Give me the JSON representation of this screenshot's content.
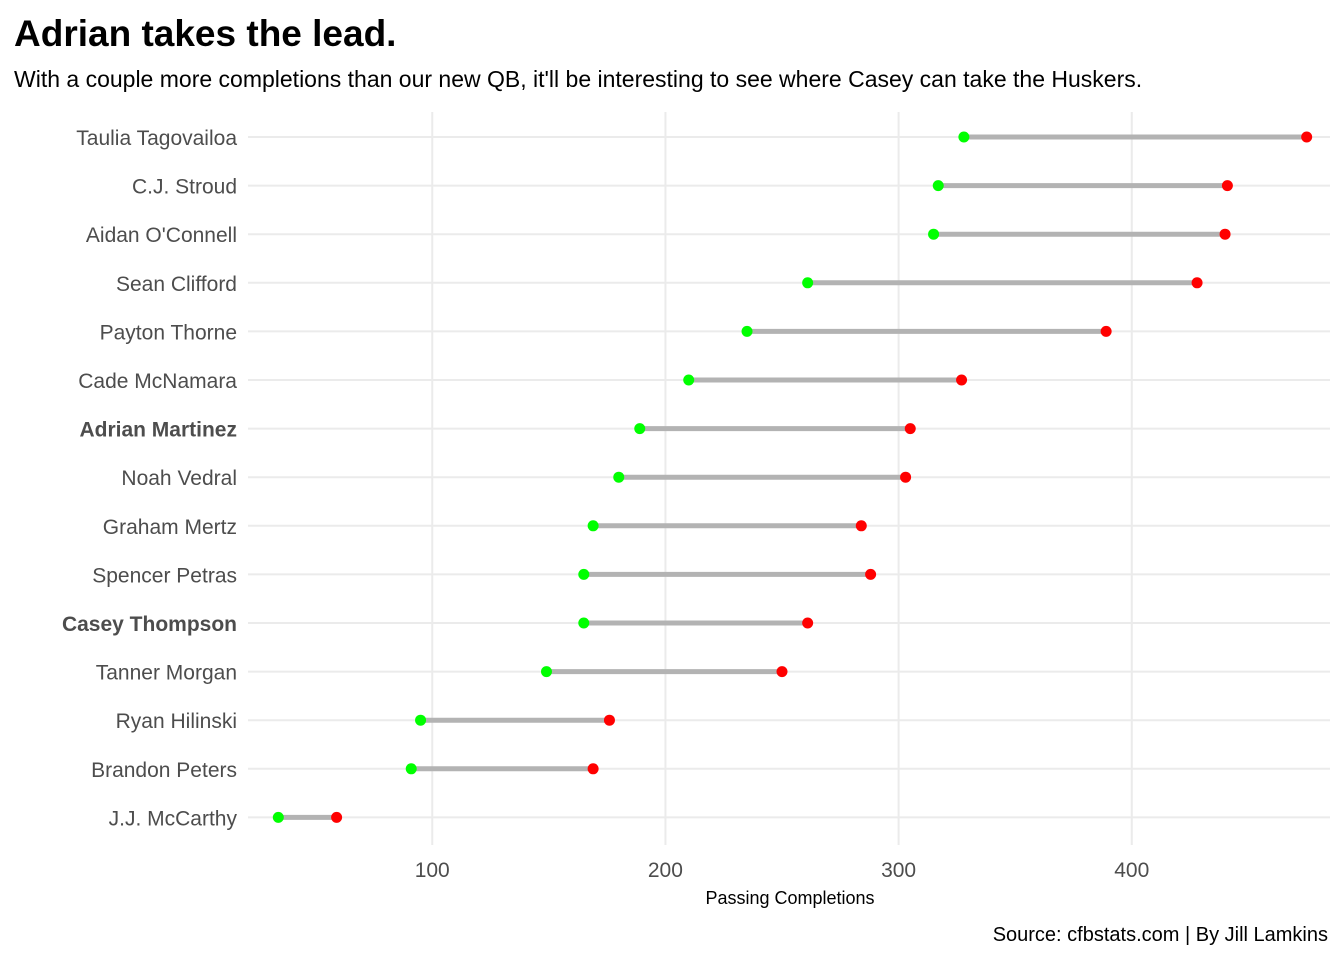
{
  "chart_data": {
    "type": "dumbbell",
    "title": "Adrian takes the lead.",
    "subtitle": "With a couple more completions than our new QB, it'll be interesting to see where Casey can take the Huskers.",
    "xlabel": "Passing Completions",
    "ylabel": "",
    "caption": "Source: cfbstats.com | By Jill Lamkins",
    "xlim": [
      21,
      485
    ],
    "xticks": [
      100,
      200,
      300,
      400
    ],
    "grid": true,
    "colors": {
      "start_point": "#00ff00",
      "end_point": "#ff0000",
      "segment": "#b3b3b3",
      "grid": "#ebebeb"
    },
    "players": [
      {
        "name": "Taulia Tagovailoa",
        "start": 328,
        "end": 475,
        "highlight": false
      },
      {
        "name": "C.J. Stroud",
        "start": 317,
        "end": 441,
        "highlight": false
      },
      {
        "name": "Aidan O'Connell",
        "start": 315,
        "end": 440,
        "highlight": false
      },
      {
        "name": "Sean Clifford",
        "start": 261,
        "end": 428,
        "highlight": false
      },
      {
        "name": "Payton Thorne",
        "start": 235,
        "end": 389,
        "highlight": false
      },
      {
        "name": "Cade McNamara",
        "start": 210,
        "end": 327,
        "highlight": false
      },
      {
        "name": "Adrian Martinez",
        "start": 189,
        "end": 305,
        "highlight": true
      },
      {
        "name": "Noah Vedral",
        "start": 180,
        "end": 303,
        "highlight": false
      },
      {
        "name": "Graham Mertz",
        "start": 169,
        "end": 284,
        "highlight": false
      },
      {
        "name": "Spencer Petras",
        "start": 165,
        "end": 288,
        "highlight": false
      },
      {
        "name": "Casey Thompson",
        "start": 165,
        "end": 261,
        "highlight": true
      },
      {
        "name": "Tanner Morgan",
        "start": 149,
        "end": 250,
        "highlight": false
      },
      {
        "name": "Ryan Hilinski",
        "start": 95,
        "end": 176,
        "highlight": false
      },
      {
        "name": "Brandon Peters",
        "start": 91,
        "end": 169,
        "highlight": false
      },
      {
        "name": "J.J. McCarthy",
        "start": 34,
        "end": 59,
        "highlight": false
      }
    ]
  }
}
